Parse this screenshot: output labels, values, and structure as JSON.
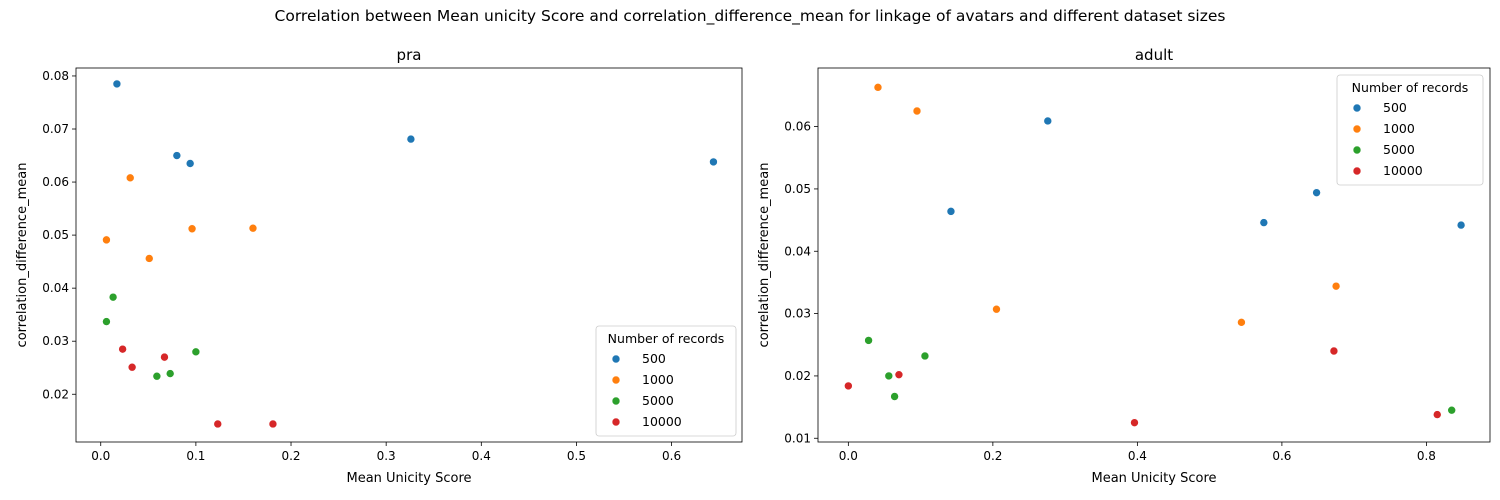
{
  "figure": {
    "title": "Correlation between Mean unicity Score and correlation_difference_mean for linkage of avatars and different dataset sizes"
  },
  "chart_data": [
    {
      "type": "scatter",
      "title": "pra",
      "xlabel": "Mean Unicity Score",
      "ylabel": "correlation_difference_mean",
      "xlim": [
        -0.026,
        0.674
      ],
      "ylim": [
        0.011,
        0.0815
      ],
      "xticks": [
        0.0,
        0.1,
        0.2,
        0.3,
        0.4,
        0.5,
        0.6
      ],
      "xtick_labels": [
        "0.0",
        "0.1",
        "0.2",
        "0.3",
        "0.4",
        "0.5",
        "0.6"
      ],
      "yticks": [
        0.02,
        0.03,
        0.04,
        0.05,
        0.06,
        0.07,
        0.08
      ],
      "ytick_labels": [
        "0.02",
        "0.03",
        "0.04",
        "0.05",
        "0.06",
        "0.07",
        "0.08"
      ],
      "grid": false,
      "legend": {
        "title": "Number of records",
        "position": "lower-right"
      },
      "series": [
        {
          "name": "500",
          "color": "#1f77b4",
          "points": [
            [
              0.017,
              0.0785
            ],
            [
              0.08,
              0.065
            ],
            [
              0.094,
              0.0635
            ],
            [
              0.326,
              0.0681
            ],
            [
              0.644,
              0.0638
            ]
          ]
        },
        {
          "name": "1000",
          "color": "#ff7f0e",
          "points": [
            [
              0.031,
              0.0608
            ],
            [
              0.006,
              0.0491
            ],
            [
              0.096,
              0.0512
            ],
            [
              0.16,
              0.0513
            ],
            [
              0.051,
              0.0456
            ]
          ]
        },
        {
          "name": "5000",
          "color": "#2ca02c",
          "points": [
            [
              0.013,
              0.0383
            ],
            [
              0.006,
              0.0337
            ],
            [
              0.1,
              0.028
            ],
            [
              0.073,
              0.0239
            ],
            [
              0.059,
              0.0234
            ]
          ]
        },
        {
          "name": "10000",
          "color": "#d62728",
          "points": [
            [
              0.023,
              0.0285
            ],
            [
              0.067,
              0.027
            ],
            [
              0.033,
              0.0251
            ],
            [
              0.123,
              0.0144
            ],
            [
              0.181,
              0.0144
            ]
          ]
        }
      ]
    },
    {
      "type": "scatter",
      "title": "adult",
      "xlabel": "Mean Unicity Score",
      "ylabel": "correlation_difference_mean",
      "xlim": [
        -0.042,
        0.888
      ],
      "ylim": [
        0.0094,
        0.0694
      ],
      "xticks": [
        0.0,
        0.2,
        0.4,
        0.6,
        0.8
      ],
      "xtick_labels": [
        "0.0",
        "0.2",
        "0.4",
        "0.6",
        "0.8"
      ],
      "yticks": [
        0.01,
        0.02,
        0.03,
        0.04,
        0.05,
        0.06
      ],
      "ytick_labels": [
        "0.01",
        "0.02",
        "0.03",
        "0.04",
        "0.05",
        "0.06"
      ],
      "grid": false,
      "legend": {
        "title": "Number of records",
        "position": "upper-right"
      },
      "series": [
        {
          "name": "500",
          "color": "#1f77b4",
          "points": [
            [
              0.142,
              0.0464
            ],
            [
              0.276,
              0.0609
            ],
            [
              0.575,
              0.0446
            ],
            [
              0.648,
              0.0494
            ],
            [
              0.848,
              0.0442
            ]
          ]
        },
        {
          "name": "1000",
          "color": "#ff7f0e",
          "points": [
            [
              0.041,
              0.0663
            ],
            [
              0.095,
              0.0625
            ],
            [
              0.205,
              0.0307
            ],
            [
              0.544,
              0.0286
            ],
            [
              0.675,
              0.0344
            ]
          ]
        },
        {
          "name": "5000",
          "color": "#2ca02c",
          "points": [
            [
              0.028,
              0.0257
            ],
            [
              0.056,
              0.02
            ],
            [
              0.064,
              0.0167
            ],
            [
              0.106,
              0.0232
            ],
            [
              0.835,
              0.0145
            ]
          ]
        },
        {
          "name": "10000",
          "color": "#d62728",
          "points": [
            [
              0.0,
              0.0184
            ],
            [
              0.07,
              0.0202
            ],
            [
              0.396,
              0.0125
            ],
            [
              0.672,
              0.024
            ],
            [
              0.815,
              0.0138
            ]
          ]
        }
      ]
    }
  ]
}
